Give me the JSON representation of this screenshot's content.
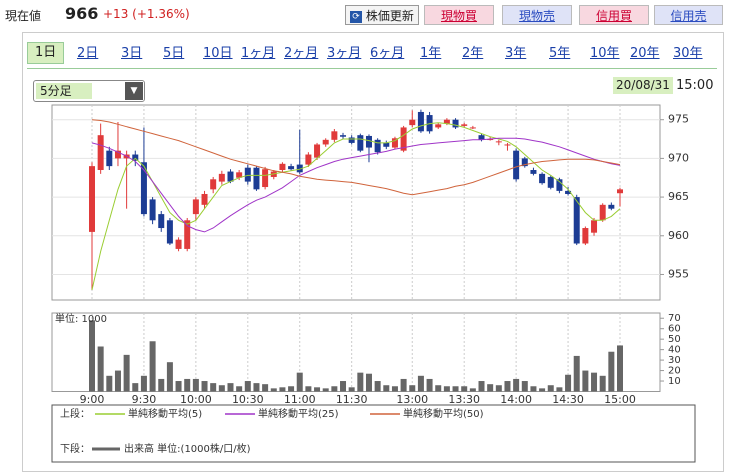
{
  "header": {
    "label": "現在値",
    "price": "966",
    "change": "+13 (+1.36%)"
  },
  "buttons": [
    "株価更新",
    "現物買",
    "現物売",
    "信用買",
    "信用売"
  ],
  "tabs": [
    "1日",
    "2日",
    "3日",
    "5日",
    "10日",
    "1ヶ月",
    "2ヶ月",
    "3ヶ月",
    "6ヶ月",
    "1年",
    "2年",
    "3年",
    "5年",
    "10年",
    "20年",
    "30年"
  ],
  "interval": "5分足",
  "date": "20/08/31",
  "time": "15:00",
  "chart_data": [
    {
      "type": "candlestick",
      "up_color": "#e03a3a",
      "down_color": "#1c3c94",
      "grid": true,
      "ylim": [
        951.7,
        976.9
      ],
      "yticks": [
        955,
        960,
        965,
        970,
        975
      ],
      "legend_prefix": "上段：",
      "open": [
        960.5,
        968.5,
        971,
        970,
        970,
        970.5,
        969.5,
        964.7,
        962.8,
        962,
        958.3,
        958.3,
        962.8,
        964,
        966,
        967,
        968.3,
        967.5,
        968.8,
        968.8,
        966.3,
        967.6,
        968.5,
        969,
        969.2,
        969.2,
        970.1,
        971.8,
        972.4,
        973,
        972.7,
        973,
        972.9,
        972.4,
        972,
        971.4,
        971,
        974.3,
        976,
        975.6,
        974,
        974.5,
        975,
        974.2,
        974,
        973,
        972.4,
        972.2,
        971.8,
        971,
        970,
        968.5,
        968,
        967.6,
        967.3,
        965.8,
        965,
        959,
        960.4,
        962,
        964,
        965.5
      ],
      "high": [
        969.5,
        974.5,
        971.5,
        974.7,
        971,
        971,
        974,
        965,
        963.2,
        962.3,
        959.8,
        962.3,
        965,
        965.8,
        967.6,
        968.4,
        968.6,
        968.5,
        969.2,
        969,
        968.9,
        968.5,
        969.5,
        969.3,
        973.7,
        970.8,
        972,
        972.6,
        973.8,
        973.3,
        973,
        973.2,
        973.1,
        972.6,
        972.3,
        972.8,
        974.2,
        976.2,
        976.3,
        976,
        974.6,
        975.2,
        975.2,
        974.6,
        974.2,
        973.2,
        972.8,
        972.4,
        972,
        971.3,
        970.2,
        968.8,
        968.2,
        967.8,
        967.5,
        966.3,
        965.3,
        961.2,
        962.3,
        964.2,
        964.3,
        966.2
      ],
      "low": [
        953,
        968,
        968.5,
        969,
        963.5,
        969,
        962.5,
        961.5,
        960.5,
        958.8,
        958,
        958,
        962,
        963.5,
        965.5,
        966.6,
        966.8,
        967.2,
        966.6,
        965.8,
        966,
        967.3,
        968.2,
        968.4,
        968,
        968.9,
        969.8,
        971.5,
        972.1,
        972.5,
        971.8,
        970.8,
        969.5,
        970.5,
        971.2,
        971.2,
        970.8,
        974,
        973.3,
        973.2,
        973.8,
        974.3,
        973.8,
        974,
        973.8,
        972.2,
        972.3,
        971.7,
        971,
        967,
        968.8,
        967.8,
        966.6,
        966,
        965.5,
        965.2,
        958.8,
        958.8,
        960,
        961.8,
        963.3,
        963.8
      ],
      "close": [
        969,
        973,
        969,
        971,
        970.5,
        969.7,
        962.8,
        962,
        961,
        959,
        959.5,
        962,
        964.7,
        965.4,
        967.3,
        968,
        967,
        968.2,
        967,
        966,
        968.6,
        968.3,
        969.3,
        968.6,
        968.2,
        970.5,
        971.8,
        972.4,
        973.5,
        972.8,
        972,
        971,
        971.4,
        970.8,
        971.5,
        972.6,
        974,
        975,
        973.5,
        973.5,
        974.4,
        975,
        974,
        974.4,
        974,
        972.4,
        972.5,
        972.2,
        971.8,
        967.3,
        969,
        968,
        966.8,
        966.2,
        965.8,
        965.4,
        959,
        961,
        962,
        964,
        963.5,
        966
      ],
      "series": [
        {
          "name": "単純移動平均(5)",
          "color": "#9acd32",
          "values": [
            953,
            958,
            962,
            966,
            969,
            970,
            969,
            967,
            965,
            963,
            962,
            961.5,
            962,
            963.5,
            965,
            966.5,
            967,
            967.5,
            967.8,
            967.8,
            967.8,
            968,
            968.2,
            968.4,
            968.6,
            969,
            970,
            971,
            972,
            972.5,
            972.5,
            972.5,
            972.3,
            972,
            972,
            972.3,
            973,
            973.8,
            974.2,
            974.5,
            974.6,
            974.5,
            974.3,
            974,
            973.6,
            973.2,
            972.8,
            972.5,
            972.2,
            971.5,
            970.5,
            969.5,
            968.5,
            967.8,
            967,
            966,
            964.5,
            963,
            962,
            962,
            962.5,
            963.5
          ]
        },
        {
          "name": "単純移動平均(25)",
          "color": "#a035c8",
          "values": [
            972,
            971.7,
            971.3,
            970.8,
            970.3,
            969.6,
            968.5,
            967,
            965.5,
            964,
            962.5,
            961.3,
            960.8,
            960.5,
            961,
            961.8,
            962.6,
            963.3,
            964,
            964.6,
            965,
            965.6,
            966.2,
            967,
            967.8,
            968.3,
            968.8,
            969.2,
            969.6,
            969.9,
            970.1,
            970.3,
            970.5,
            970.7,
            970.9,
            971.2,
            971.4,
            971.6,
            971.8,
            971.9,
            972,
            972.1,
            972.2,
            972.3,
            972.4,
            972.4,
            972.5,
            972.6,
            972.6,
            972.6,
            972.5,
            972.3,
            972.1,
            971.8,
            971.5,
            971.1,
            970.7,
            970.3,
            969.9,
            969.6,
            969.3,
            969.1
          ]
        },
        {
          "name": "単純移動平均(50)",
          "color": "#d0643c",
          "values": [
            975,
            974.9,
            974.7,
            974.4,
            974.1,
            973.8,
            973.5,
            973.2,
            972.9,
            972.6,
            972.3,
            971.9,
            971.5,
            971.1,
            970.7,
            970.3,
            969.9,
            969.6,
            969.3,
            969,
            968.7,
            968.4,
            968.2,
            968,
            967.7,
            967.5,
            967.3,
            967.2,
            967.1,
            967,
            966.9,
            966.7,
            966.5,
            966.3,
            966.1,
            965.8,
            965.5,
            965.3,
            965.5,
            965.7,
            965.9,
            966.1,
            966.4,
            966.6,
            966.9,
            967.3,
            967.7,
            968.1,
            968.5,
            968.9,
            969.2,
            969.4,
            969.6,
            969.7,
            969.8,
            969.9,
            969.9,
            969.9,
            969.8,
            969.6,
            969.4,
            969.2
          ]
        }
      ]
    },
    {
      "type": "bar",
      "unit_label": "単位: 1000",
      "legend_prefix": "下段：",
      "grid": true,
      "ylim": [
        0,
        75
      ],
      "yticks": [
        10,
        20,
        30,
        40,
        50,
        60,
        70
      ],
      "categories": [
        "9:00",
        null,
        null,
        null,
        null,
        null,
        "9:30",
        null,
        null,
        null,
        null,
        null,
        "10:00",
        null,
        null,
        null,
        null,
        null,
        "10:30",
        null,
        null,
        null,
        null,
        null,
        "11:00",
        null,
        null,
        null,
        null,
        null,
        "11:30",
        null,
        null,
        null,
        null,
        null,
        null,
        "13:00",
        null,
        null,
        null,
        null,
        null,
        "13:30",
        null,
        null,
        null,
        null,
        null,
        "14:00",
        null,
        null,
        null,
        null,
        null,
        "14:30",
        null,
        null,
        null,
        null,
        null,
        "15:00"
      ],
      "series": [
        {
          "name": "出来高 単位:(1000株/口/枚)",
          "color": "#666666",
          "values": [
            68,
            43,
            15,
            20,
            35,
            8,
            15,
            48,
            12,
            28,
            10,
            12,
            12,
            10,
            8,
            6,
            8,
            5,
            10,
            8,
            7,
            3,
            4,
            5,
            18,
            5,
            4,
            3,
            5,
            10,
            4,
            18,
            17,
            10,
            6,
            5,
            12,
            6,
            15,
            12,
            6,
            5,
            5,
            5,
            3,
            10,
            7,
            6,
            10,
            12,
            10,
            5,
            3,
            6,
            4,
            16,
            34,
            20,
            18,
            15,
            38,
            44
          ]
        }
      ]
    }
  ]
}
